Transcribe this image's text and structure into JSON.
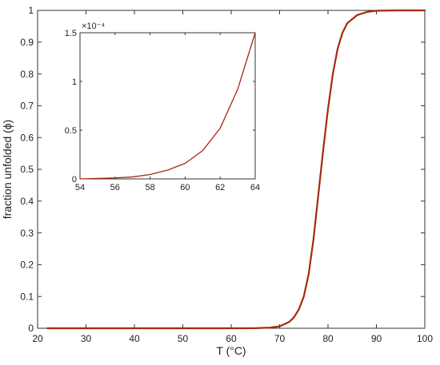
{
  "chart_data": [
    {
      "id": "main",
      "type": "line",
      "title": "",
      "xlabel": "T (°C)",
      "ylabel": "fraction unfolded (ϕ)",
      "xlim": [
        20,
        100
      ],
      "ylim": [
        0,
        1
      ],
      "xticks": [
        20,
        30,
        40,
        50,
        60,
        70,
        80,
        90,
        100
      ],
      "xtick_labels": [
        "20",
        "30",
        "40",
        "50",
        "60",
        "70",
        "80",
        "90",
        "100"
      ],
      "yticks": [
        0,
        0.1,
        0.2,
        0.3,
        0.4,
        0.5,
        0.6,
        0.7,
        0.8,
        0.9,
        1
      ],
      "ytick_labels": [
        "0",
        "0.1",
        "0.2",
        "0.3",
        "0.4",
        "0.5",
        "0.6",
        "0.7",
        "0.8",
        "0.9",
        "1"
      ],
      "grid": false,
      "series": [
        {
          "color": "#a52a0f",
          "points": [
            {
              "x": 22,
              "y": 0
            },
            {
              "x": 30,
              "y": 0
            },
            {
              "x": 40,
              "y": 0
            },
            {
              "x": 50,
              "y": 0
            },
            {
              "x": 60,
              "y": 0
            },
            {
              "x": 65,
              "y": 0.0003
            },
            {
              "x": 68,
              "y": 0.002
            },
            {
              "x": 70,
              "y": 0.006
            },
            {
              "x": 72,
              "y": 0.02
            },
            {
              "x": 73,
              "y": 0.035
            },
            {
              "x": 74,
              "y": 0.06
            },
            {
              "x": 75,
              "y": 0.1
            },
            {
              "x": 76,
              "y": 0.17
            },
            {
              "x": 77,
              "y": 0.28
            },
            {
              "x": 78,
              "y": 0.42
            },
            {
              "x": 79,
              "y": 0.56
            },
            {
              "x": 80,
              "y": 0.69
            },
            {
              "x": 81,
              "y": 0.8
            },
            {
              "x": 82,
              "y": 0.88
            },
            {
              "x": 83,
              "y": 0.93
            },
            {
              "x": 84,
              "y": 0.96
            },
            {
              "x": 86,
              "y": 0.985
            },
            {
              "x": 88,
              "y": 0.995
            },
            {
              "x": 90,
              "y": 0.999
            },
            {
              "x": 95,
              "y": 1
            },
            {
              "x": 100,
              "y": 1
            }
          ]
        }
      ]
    },
    {
      "id": "inset",
      "type": "line",
      "title": "",
      "xlabel": "",
      "ylabel": "",
      "xlim": [
        54,
        64
      ],
      "ylim": [
        0,
        1.5
      ],
      "scale_label": "×10⁻⁴",
      "xticks": [
        54,
        56,
        58,
        60,
        62,
        64
      ],
      "xtick_labels": [
        "54",
        "56",
        "58",
        "60",
        "62",
        "64"
      ],
      "yticks": [
        0,
        0.5,
        1,
        1.5
      ],
      "ytick_labels": [
        "0",
        "0.5",
        "1",
        "1.5"
      ],
      "grid": false,
      "series": [
        {
          "color": "#a52a0f",
          "points": [
            {
              "x": 54,
              "y": 0
            },
            {
              "x": 55,
              "y": 0.005
            },
            {
              "x": 56,
              "y": 0.01
            },
            {
              "x": 57,
              "y": 0.02
            },
            {
              "x": 58,
              "y": 0.045
            },
            {
              "x": 59,
              "y": 0.09
            },
            {
              "x": 60,
              "y": 0.16
            },
            {
              "x": 61,
              "y": 0.29
            },
            {
              "x": 62,
              "y": 0.52
            },
            {
              "x": 63,
              "y": 0.92
            },
            {
              "x": 64,
              "y": 1.5
            }
          ]
        }
      ]
    }
  ]
}
